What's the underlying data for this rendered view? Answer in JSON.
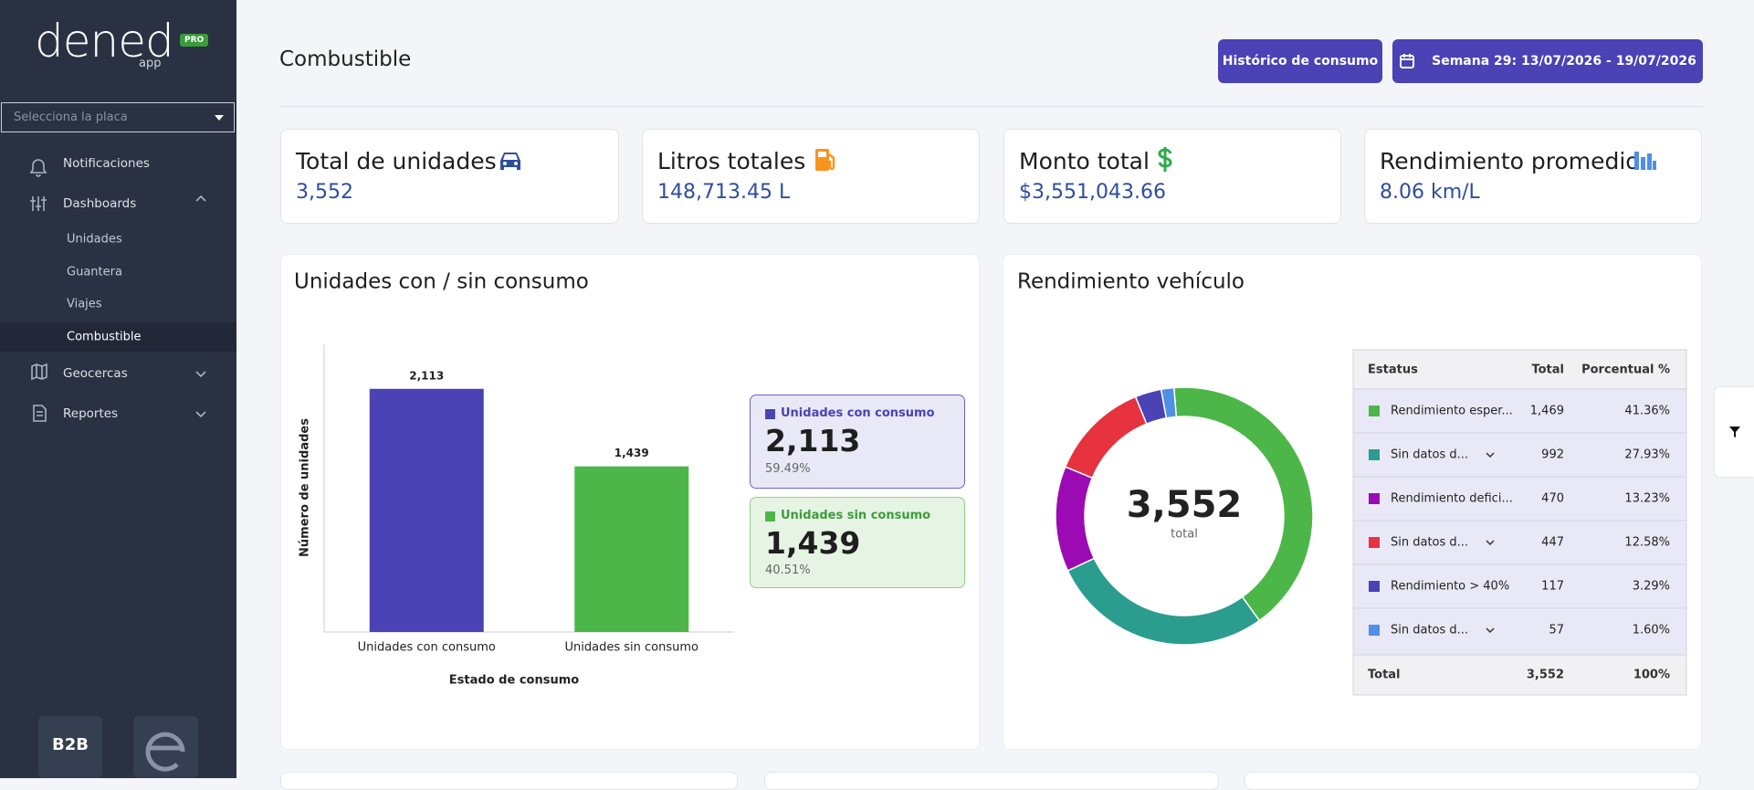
{
  "sidebar": {
    "logo": "dened",
    "logo_sub": "app",
    "badge": "PRO",
    "select_placeholder": "Selecciona la placa",
    "menu": [
      "Notificaciones",
      "Dashboards",
      "Unidades",
      "Guantera",
      "Viajes",
      "Combustible",
      "Geocercas",
      "Reportes"
    ],
    "footer_badge": "B2B"
  },
  "header": {
    "title": "Combustible",
    "history_button": "Histórico de consumo",
    "week_button": "Semana 29: 13/07/2026 - 19/07/2026"
  },
  "kpis": [
    {
      "label": "Total de unidades",
      "value": "3,552"
    },
    {
      "label": "Litros totales",
      "value": "148,713.45 L"
    },
    {
      "label": "Monto total",
      "value": "$3,551,043.66"
    },
    {
      "label": "Rendimiento promedio",
      "value": "8.06 km/L"
    }
  ],
  "chart_data": [
    {
      "type": "bar",
      "title": "Unidades con / sin consumo",
      "xlabel": "Estado de consumo",
      "ylabel": "Número de unidades",
      "categories": [
        "Unidades con consumo",
        "Unidades sin consumo"
      ],
      "values": [
        2113,
        1439
      ],
      "value_labels": [
        "2,113",
        "1,439"
      ],
      "colors": [
        "#4a42b5",
        "#4cb748"
      ],
      "ylim": [
        0,
        2500
      ],
      "shares": [
        "59.49%",
        "40.51%"
      ]
    },
    {
      "type": "pie",
      "title": "Rendimiento vehículo",
      "center_value": "3,552",
      "center_label": "total",
      "categories": [
        "Rendimiento esper...",
        "Sin datos d...",
        "Rendimiento defici...",
        "Sin datos d...",
        "Rendimiento > 40%",
        "Sin datos d..."
      ],
      "values": [
        1469,
        992,
        470,
        447,
        117,
        57
      ],
      "value_labels": [
        "1,469",
        "992",
        "470",
        "447",
        "117",
        "57"
      ],
      "percent_labels": [
        "41.36%",
        "27.93%",
        "13.23%",
        "12.58%",
        "3.29%",
        "1.60%"
      ],
      "colors": [
        "#4cb748",
        "#2a9d8f",
        "#9b0ab3",
        "#e6333f",
        "#4a42b5",
        "#4f8fe6"
      ],
      "table_headers": [
        "Estatus",
        "Total",
        "Porcentual %"
      ],
      "total_row": [
        "Total",
        "3,552",
        "100%"
      ]
    }
  ]
}
